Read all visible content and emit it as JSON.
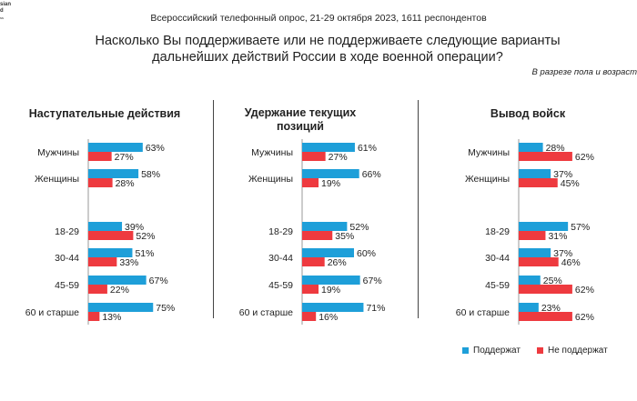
{
  "logo": {
    "line1": "sian",
    "line2": "d",
    "line3": "ss"
  },
  "header": {
    "survey": "Всероссийский телефонный опрос, 21-29 октября 2023, 1611 респондентов"
  },
  "question": {
    "line1": "Насколько Вы поддерживаете или не поддерживаете следующие варианты",
    "line2": "дальнейших действий России в ходе военной операции?"
  },
  "subtitle": "В разрезе пола и возраст",
  "legend": {
    "support": "Поддержат",
    "not_support": "Не поддержат"
  },
  "colors": {
    "support": "#1e9fd9",
    "not_support": "#ee3a3f"
  },
  "chart_data": [
    {
      "type": "bar",
      "title": "Наступательные действия",
      "categories": [
        "Мужчины",
        "Женщины",
        "18-29",
        "30-44",
        "45-59",
        "60 и старше"
      ],
      "series": [
        {
          "name": "Поддержат",
          "values": [
            63,
            58,
            39,
            51,
            67,
            75
          ]
        },
        {
          "name": "Не поддержат",
          "values": [
            27,
            28,
            52,
            33,
            22,
            13
          ]
        }
      ],
      "unit": "%"
    },
    {
      "type": "bar",
      "title": "Удержание текущих позиций",
      "title_lines": [
        "Удержание текущих",
        "позиций"
      ],
      "categories": [
        "Мужчины",
        "Женщины",
        "18-29",
        "30-44",
        "45-59",
        "60 и старше"
      ],
      "series": [
        {
          "name": "Поддержат",
          "values": [
            61,
            66,
            52,
            60,
            67,
            71
          ]
        },
        {
          "name": "Не поддержат",
          "values": [
            27,
            19,
            35,
            26,
            19,
            16
          ]
        }
      ],
      "unit": "%"
    },
    {
      "type": "bar",
      "title": "Вывод войск",
      "categories": [
        "Мужчины",
        "Женщины",
        "18-29",
        "30-44",
        "45-59",
        "60 и старше"
      ],
      "series": [
        {
          "name": "Поддержат",
          "values": [
            28,
            37,
            57,
            37,
            25,
            23
          ]
        },
        {
          "name": "Не поддержат",
          "values": [
            62,
            45,
            31,
            46,
            62,
            62
          ]
        }
      ],
      "unit": "%"
    }
  ]
}
